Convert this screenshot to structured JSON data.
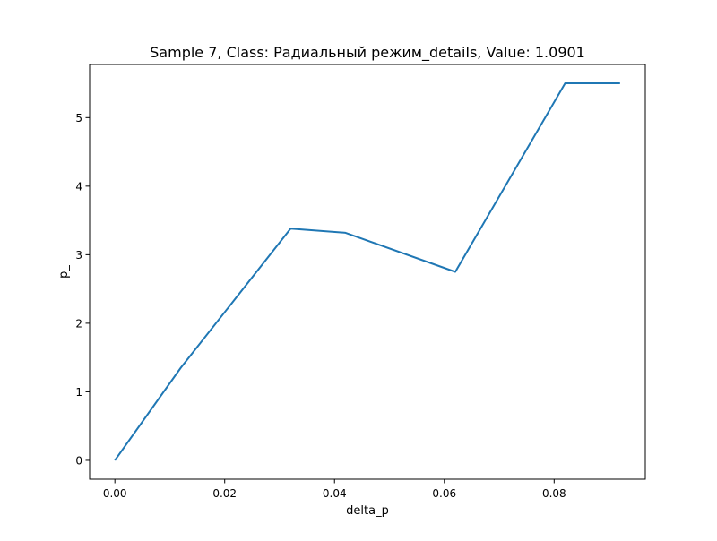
{
  "chart_data": {
    "type": "line",
    "title": "Sample 7, Class: Радиальный режим_details, Value: 1.0901",
    "xlabel": "delta_p",
    "ylabel": "p_",
    "xlim": [
      -0.0046,
      0.0966
    ],
    "ylim": [
      -0.275,
      5.775
    ],
    "x_ticks": [
      0.0,
      0.02,
      0.04,
      0.06,
      0.08
    ],
    "x_tick_labels": [
      "0.00",
      "0.02",
      "0.04",
      "0.06",
      "0.08"
    ],
    "y_ticks": [
      0,
      1,
      2,
      3,
      4,
      5
    ],
    "y_tick_labels": [
      "0",
      "1",
      "2",
      "3",
      "4",
      "5"
    ],
    "grid": false,
    "series": [
      {
        "color": "#1f77b4",
        "x": [
          0.0,
          0.012,
          0.032,
          0.042,
          0.062,
          0.082,
          0.092
        ],
        "y": [
          0.0,
          1.35,
          3.38,
          3.32,
          2.75,
          5.5,
          5.5
        ]
      }
    ]
  }
}
